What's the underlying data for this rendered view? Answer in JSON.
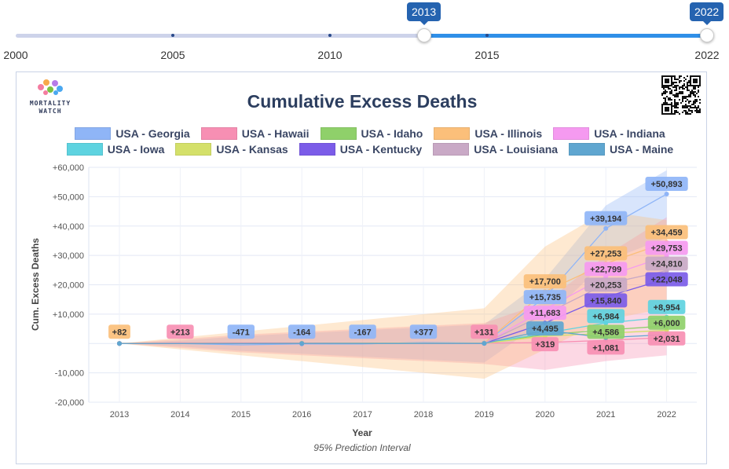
{
  "slider": {
    "min_label": "2000",
    "ticks": [
      "2000",
      "2005",
      "2010",
      "2015",
      "2022"
    ],
    "start": "2013",
    "end": "2022",
    "active_color": "#2f8fe8"
  },
  "logo": {
    "line1": "MORTALITY",
    "line2": "WATCH"
  },
  "chart_data": {
    "type": "line",
    "title": "Cumulative Excess Deaths",
    "xlabel": "Year",
    "ylabel": "Cum. Excess Deaths",
    "subtitle": "95% Prediction Interval",
    "categories": [
      "2013",
      "2014",
      "2015",
      "2016",
      "2017",
      "2018",
      "2019",
      "2020",
      "2021",
      "2022"
    ],
    "ylim": [
      -20000,
      60000
    ],
    "yticks": [
      "+60,000",
      "+50,000",
      "+40,000",
      "+30,000",
      "+20,000",
      "+10,000",
      "",
      "-10,000",
      "-20,000"
    ],
    "legend_position": "top",
    "series": [
      {
        "name": "USA - Georgia",
        "color": "#8fb5f7",
        "values": [
          0,
          0,
          -471,
          -164,
          -167,
          377,
          131,
          15735,
          39194,
          50893
        ],
        "pi_low": [
          0,
          -1000,
          -2500,
          -3500,
          -4500,
          -5500,
          -6500,
          8000,
          28000,
          36000
        ],
        "pi_high": [
          0,
          1000,
          2500,
          3500,
          4500,
          5500,
          6500,
          22000,
          47000,
          59000
        ]
      },
      {
        "name": "USA - Hawaii",
        "color": "#f78fb3",
        "values": [
          0,
          213,
          200,
          150,
          100,
          200,
          131,
          319,
          1081,
          2031
        ],
        "pi_low": [
          0,
          -1500,
          -3000,
          -4000,
          -5000,
          -6000,
          -7000,
          -9000,
          -6000,
          -4000
        ],
        "pi_high": [
          0,
          1500,
          3000,
          4000,
          5000,
          6000,
          7000,
          14000,
          30000,
          43000
        ]
      },
      {
        "name": "USA - Idaho",
        "color": "#8fd06a",
        "values": [
          0,
          20,
          40,
          60,
          80,
          100,
          120,
          3000,
          4586,
          6000
        ]
      },
      {
        "name": "USA - Illinois",
        "color": "#fbbf7a",
        "values": [
          82,
          100,
          50,
          0,
          50,
          150,
          100,
          17700,
          27253,
          34459
        ],
        "pi_low": [
          0,
          -2000,
          -4000,
          -6000,
          -8000,
          -10000,
          -12000,
          -2000,
          8000,
          12000
        ],
        "pi_high": [
          0,
          2000,
          4000,
          6000,
          8000,
          10000,
          12000,
          33000,
          45000,
          42000
        ]
      },
      {
        "name": "USA - Indiana",
        "color": "#f59af0",
        "values": [
          0,
          50,
          0,
          -50,
          0,
          50,
          50,
          11683,
          22799,
          29753
        ]
      },
      {
        "name": "USA - Iowa",
        "color": "#5ed3e0",
        "values": [
          0,
          10,
          20,
          30,
          40,
          50,
          60,
          3500,
          6984,
          8954
        ]
      },
      {
        "name": "USA - Kansas",
        "color": "#d4e06a",
        "values": [
          0,
          10,
          20,
          30,
          40,
          50,
          60,
          2500,
          3500,
          4500
        ]
      },
      {
        "name": "USA - Kentucky",
        "color": "#7b5ce8",
        "values": [
          0,
          20,
          0,
          -20,
          0,
          20,
          40,
          7000,
          15840,
          22048
        ]
      },
      {
        "name": "USA - Louisiana",
        "color": "#c9a9c6",
        "values": [
          0,
          30,
          0,
          -30,
          0,
          30,
          60,
          10000,
          20253,
          24810
        ]
      },
      {
        "name": "USA - Maine",
        "color": "#5fa6d0",
        "values": [
          0,
          5,
          10,
          15,
          20,
          25,
          30,
          4495,
          2000,
          3000
        ]
      }
    ],
    "data_labels": [
      {
        "x": "2013",
        "text": "+82",
        "series": "USA - Illinois"
      },
      {
        "x": "2014",
        "text": "+213",
        "series": "USA - Hawaii"
      },
      {
        "x": "2015",
        "text": "-471",
        "series": "USA - Georgia"
      },
      {
        "x": "2016",
        "text": "-164",
        "series": "USA - Georgia"
      },
      {
        "x": "2017",
        "text": "-167",
        "series": "USA - Georgia"
      },
      {
        "x": "2018",
        "text": "+377",
        "series": "USA - Georgia"
      },
      {
        "x": "2019",
        "text": "+131",
        "series": "USA - Hawaii"
      },
      {
        "x": "2020",
        "text": "+17,700",
        "series": "USA - Illinois"
      },
      {
        "x": "2020",
        "text": "+15,735",
        "series": "USA - Georgia"
      },
      {
        "x": "2020",
        "text": "+11,683",
        "series": "USA - Indiana"
      },
      {
        "x": "2020",
        "text": "+4,495",
        "series": "USA - Maine"
      },
      {
        "x": "2020",
        "text": "+319",
        "series": "USA - Hawaii"
      },
      {
        "x": "2021",
        "text": "+39,194",
        "series": "USA - Georgia"
      },
      {
        "x": "2021",
        "text": "+27,253",
        "series": "USA - Illinois"
      },
      {
        "x": "2021",
        "text": "+22,799",
        "series": "USA - Indiana"
      },
      {
        "x": "2021",
        "text": "+20,253",
        "series": "USA - Louisiana"
      },
      {
        "x": "2021",
        "text": "+15,840",
        "series": "USA - Kentucky"
      },
      {
        "x": "2021",
        "text": "+6,984",
        "series": "USA - Iowa"
      },
      {
        "x": "2021",
        "text": "+4,586",
        "series": "USA - Idaho"
      },
      {
        "x": "2021",
        "text": "+1,081",
        "series": "USA - Hawaii"
      },
      {
        "x": "2022",
        "text": "+50,893",
        "series": "USA - Georgia"
      },
      {
        "x": "2022",
        "text": "+34,459",
        "series": "USA - Illinois"
      },
      {
        "x": "2022",
        "text": "+29,753",
        "series": "USA - Indiana"
      },
      {
        "x": "2022",
        "text": "+24,810",
        "series": "USA - Louisiana"
      },
      {
        "x": "2022",
        "text": "+22,048",
        "series": "USA - Kentucky"
      },
      {
        "x": "2022",
        "text": "+8,954",
        "series": "USA - Iowa"
      },
      {
        "x": "2022",
        "text": "+6,000",
        "series": "USA - Idaho"
      },
      {
        "x": "2022",
        "text": "+2,031",
        "series": "USA - Hawaii"
      }
    ]
  }
}
